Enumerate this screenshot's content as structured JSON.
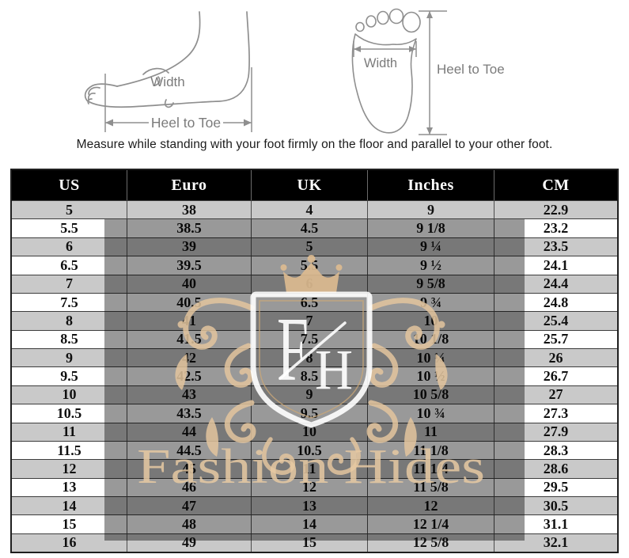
{
  "instructions": {
    "caption": "Measure while standing with your foot firmly on the floor and parallel to your other foot."
  },
  "diagrams": {
    "side_view": {
      "width_label": "Width",
      "heel_to_toe_label": "Heel to Toe"
    },
    "sole_view": {
      "width_label": "Width",
      "heel_to_toe_label": "Heel to Toe"
    },
    "stroke_color": "#8f8f8f",
    "label_color": "#7b7b7b"
  },
  "watermark": {
    "brand_text": "Fashion Hides",
    "monogram": {
      "letter_f": "F",
      "letter_h": "H"
    },
    "colors": {
      "tan": "#ddbd93",
      "tan_light": "#e3c59e",
      "overlay": "rgba(0,0,0,0.40)",
      "white": "rgba(255,255,255,0.92)"
    }
  },
  "chart_data": {
    "type": "table",
    "columns": [
      "US",
      "Euro",
      "UK",
      "Inches",
      "CM"
    ],
    "rows": [
      [
        "5",
        "38",
        "4",
        "9",
        "22.9"
      ],
      [
        "5.5",
        "38.5",
        "4.5",
        "9 1/8",
        "23.2"
      ],
      [
        "6",
        "39",
        "5",
        "9 ¼",
        "23.5"
      ],
      [
        "6.5",
        "39.5",
        "5.5",
        "9 ½",
        "24.1"
      ],
      [
        "7",
        "40",
        "6",
        "9 5/8",
        "24.4"
      ],
      [
        "7.5",
        "40.5",
        "6.5",
        "9 ¾",
        "24.8"
      ],
      [
        "8",
        "41",
        "7",
        "10",
        "25.4"
      ],
      [
        "8.5",
        "41.5",
        "7.5",
        "10 1/8",
        "25.7"
      ],
      [
        "9",
        "42",
        "8",
        "10 ¼",
        "26"
      ],
      [
        "9.5",
        "42.5",
        "8.5",
        "10 ½",
        "26.7"
      ],
      [
        "10",
        "43",
        "9",
        "10 5/8",
        "27"
      ],
      [
        "10.5",
        "43.5",
        "9.5",
        "10 ¾",
        "27.3"
      ],
      [
        "11",
        "44",
        "10",
        "11",
        "27.9"
      ],
      [
        "11.5",
        "44.5",
        "10.5",
        "11 1/8",
        "28.3"
      ],
      [
        "12",
        "45",
        "11",
        "11 1/4",
        "28.6"
      ],
      [
        "13",
        "46",
        "12",
        "11 5/8",
        "29.5"
      ],
      [
        "14",
        "47",
        "13",
        "12",
        "30.5"
      ],
      [
        "15",
        "48",
        "14",
        "12 1/4",
        "31.1"
      ],
      [
        "16",
        "49",
        "15",
        "12 5/8",
        "32.1"
      ]
    ],
    "styles": {
      "header_bg": "#000000",
      "header_text": "#ffffff",
      "row_alt_bg": "#c9c9c9",
      "row_bg": "#ffffff",
      "border": "#3d3d3d"
    }
  }
}
